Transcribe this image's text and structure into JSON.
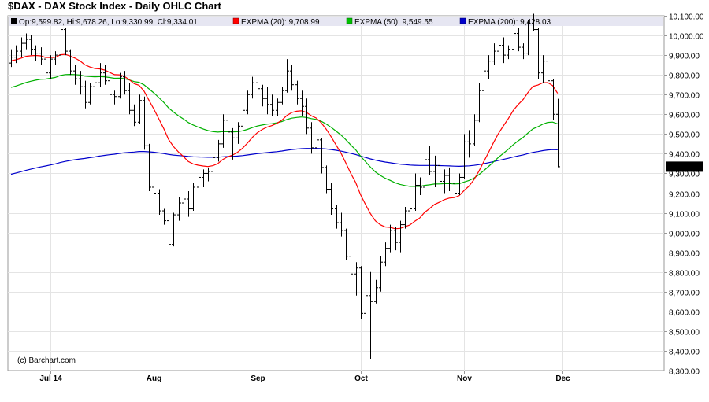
{
  "chart_data": {
    "type": "ohlc",
    "title": "$DAX - DAX Stock Index - Daily OHLC Chart",
    "watermark": "(c) Barchart.com",
    "ohlc_legend": {
      "open": "Op:9,599.82",
      "high": "Hi:9,678.26",
      "low": "Lo:9,330.99",
      "close": "Cl:9,334.01",
      "label": "Op:9,599.82, Hi:9,678.26, Lo:9,330.99, Cl:9,334.01"
    },
    "last_price_label": "9,334.01",
    "ylim": [
      8300,
      10100
    ],
    "y_ticks": [
      "10,100.00",
      "10,000.00",
      "9,900.00",
      "9,800.00",
      "9,700.00",
      "9,600.00",
      "9,500.00",
      "9,400.00",
      "9,300.00",
      "9,200.00",
      "9,100.00",
      "9,000.00",
      "8,900.00",
      "8,800.00",
      "8,700.00",
      "8,600.00",
      "8,500.00",
      "8,400.00",
      "8,300.00"
    ],
    "x_months": [
      {
        "label": "Jul 14",
        "index": 8
      },
      {
        "label": "Aug",
        "index": 29
      },
      {
        "label": "Sep",
        "index": 50
      },
      {
        "label": "Oct",
        "index": 71
      },
      {
        "label": "Nov",
        "index": 92
      },
      {
        "label": "Dec",
        "index": 112
      }
    ],
    "grid": true,
    "colors": {
      "bars": "#000000",
      "ema20": "#ff0000",
      "ema50": "#00b000",
      "ema200": "#0000cc",
      "legend_bg": "#e6e6f2"
    },
    "ohlc": [
      [
        9860,
        9930,
        9840,
        9890
      ],
      [
        9890,
        9950,
        9860,
        9920
      ],
      [
        9920,
        9990,
        9890,
        9960
      ],
      [
        9960,
        10010,
        9930,
        9980
      ],
      [
        9980,
        10000,
        9900,
        9930
      ],
      [
        9930,
        9950,
        9870,
        9910
      ],
      [
        9910,
        9940,
        9850,
        9880
      ],
      [
        9880,
        9900,
        9790,
        9810
      ],
      [
        9810,
        9900,
        9780,
        9880
      ],
      [
        9880,
        9920,
        9850,
        9900
      ],
      [
        9900,
        10050,
        9880,
        10030
      ],
      [
        10030,
        10040,
        9900,
        9920
      ],
      [
        9920,
        9930,
        9800,
        9820
      ],
      [
        9820,
        9850,
        9750,
        9780
      ],
      [
        9780,
        9820,
        9700,
        9740
      ],
      [
        9740,
        9770,
        9630,
        9660
      ],
      [
        9660,
        9760,
        9650,
        9740
      ],
      [
        9740,
        9780,
        9700,
        9760
      ],
      [
        9760,
        9860,
        9740,
        9810
      ],
      [
        9810,
        9850,
        9750,
        9770
      ],
      [
        9770,
        9790,
        9680,
        9700
      ],
      [
        9700,
        9720,
        9650,
        9690
      ],
      [
        9690,
        9810,
        9680,
        9790
      ],
      [
        9790,
        9820,
        9700,
        9720
      ],
      [
        9720,
        9760,
        9600,
        9620
      ],
      [
        9620,
        9650,
        9540,
        9560
      ],
      [
        9560,
        9700,
        9550,
        9670
      ],
      [
        9670,
        9690,
        9420,
        9440
      ],
      [
        9440,
        9450,
        9210,
        9230
      ],
      [
        9230,
        9260,
        9160,
        9200
      ],
      [
        9200,
        9220,
        9090,
        9110
      ],
      [
        9110,
        9120,
        9040,
        9060
      ],
      [
        9060,
        9100,
        8910,
        8940
      ],
      [
        8940,
        9100,
        8930,
        9090
      ],
      [
        9090,
        9180,
        9060,
        9150
      ],
      [
        9150,
        9200,
        9100,
        9170
      ],
      [
        9170,
        9210,
        9080,
        9120
      ],
      [
        9120,
        9250,
        9110,
        9230
      ],
      [
        9230,
        9300,
        9200,
        9280
      ],
      [
        9280,
        9320,
        9230,
        9300
      ],
      [
        9300,
        9330,
        9260,
        9310
      ],
      [
        9310,
        9400,
        9290,
        9380
      ],
      [
        9380,
        9470,
        9360,
        9450
      ],
      [
        9450,
        9600,
        9430,
        9570
      ],
      [
        9570,
        9590,
        9470,
        9510
      ],
      [
        9510,
        9530,
        9370,
        9480
      ],
      [
        9480,
        9560,
        9450,
        9540
      ],
      [
        9540,
        9640,
        9520,
        9620
      ],
      [
        9620,
        9720,
        9600,
        9700
      ],
      [
        9700,
        9790,
        9680,
        9760
      ],
      [
        9760,
        9780,
        9690,
        9730
      ],
      [
        9730,
        9750,
        9640,
        9680
      ],
      [
        9680,
        9740,
        9600,
        9650
      ],
      [
        9650,
        9700,
        9590,
        9620
      ],
      [
        9620,
        9680,
        9590,
        9660
      ],
      [
        9660,
        9740,
        9650,
        9720
      ],
      [
        9720,
        9880,
        9710,
        9820
      ],
      [
        9820,
        9850,
        9720,
        9750
      ],
      [
        9750,
        9770,
        9650,
        9680
      ],
      [
        9680,
        9720,
        9590,
        9640
      ],
      [
        9640,
        9680,
        9500,
        9530
      ],
      [
        9530,
        9560,
        9400,
        9430
      ],
      [
        9430,
        9500,
        9380,
        9470
      ],
      [
        9470,
        9480,
        9300,
        9330
      ],
      [
        9330,
        9340,
        9200,
        9220
      ],
      [
        9220,
        9250,
        9090,
        9120
      ],
      [
        9120,
        9140,
        9020,
        9050
      ],
      [
        9050,
        9100,
        8980,
        9010
      ],
      [
        9010,
        9020,
        8860,
        8880
      ],
      [
        8880,
        8890,
        8760,
        8790
      ],
      [
        8790,
        8850,
        8680,
        8820
      ],
      [
        8820,
        8830,
        8560,
        8590
      ],
      [
        8590,
        8700,
        8580,
        8680
      ],
      [
        8680,
        8800,
        8360,
        8650
      ],
      [
        8650,
        8760,
        8640,
        8720
      ],
      [
        8720,
        8880,
        8700,
        8850
      ],
      [
        8850,
        8950,
        8830,
        8920
      ],
      [
        8920,
        9040,
        8900,
        9010
      ],
      [
        9010,
        9030,
        8910,
        8950
      ],
      [
        8950,
        9060,
        8900,
        9040
      ],
      [
        9040,
        9130,
        9020,
        9110
      ],
      [
        9110,
        9150,
        9070,
        9120
      ],
      [
        9120,
        9300,
        9110,
        9240
      ],
      [
        9240,
        9280,
        9190,
        9230
      ],
      [
        9230,
        9400,
        9220,
        9370
      ],
      [
        9370,
        9440,
        9290,
        9310
      ],
      [
        9310,
        9390,
        9230,
        9340
      ],
      [
        9340,
        9350,
        9230,
        9260
      ],
      [
        9260,
        9320,
        9200,
        9290
      ],
      [
        9290,
        9330,
        9210,
        9250
      ],
      [
        9250,
        9280,
        9170,
        9200
      ],
      [
        9200,
        9300,
        9190,
        9280
      ],
      [
        9280,
        9500,
        9270,
        9460
      ],
      [
        9460,
        9520,
        9380,
        9450
      ],
      [
        9450,
        9600,
        9440,
        9570
      ],
      [
        9570,
        9760,
        9560,
        9720
      ],
      [
        9720,
        9850,
        9700,
        9820
      ],
      [
        9820,
        9900,
        9780,
        9870
      ],
      [
        9870,
        9960,
        9850,
        9920
      ],
      [
        9920,
        9980,
        9890,
        9950
      ],
      [
        9950,
        9990,
        9860,
        9900
      ],
      [
        9900,
        9950,
        9880,
        9930
      ],
      [
        9930,
        10050,
        9910,
        10010
      ],
      [
        10010,
        10040,
        9920,
        9940
      ],
      [
        9940,
        9960,
        9880,
        9910
      ],
      [
        9910,
        10080,
        9900,
        10060
      ],
      [
        10060,
        10110,
        10020,
        10030
      ],
      [
        10030,
        10040,
        9780,
        9810
      ],
      [
        9810,
        9900,
        9760,
        9870
      ],
      [
        9870,
        9890,
        9720,
        9770
      ],
      [
        9770,
        9780,
        9570,
        9600
      ],
      [
        9599.82,
        9678.26,
        9330.99,
        9334.01
      ]
    ]
  }
}
